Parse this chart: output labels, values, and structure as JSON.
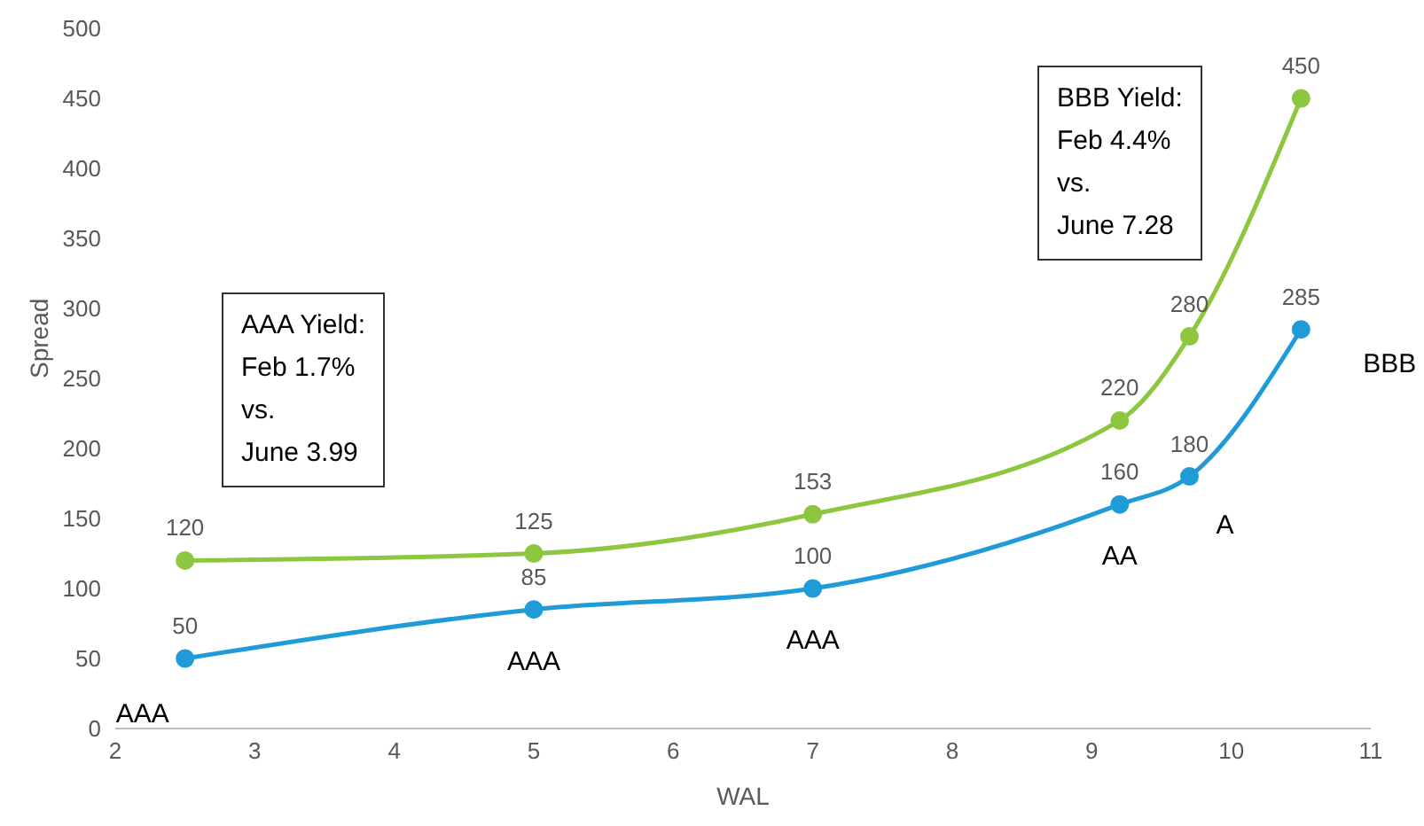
{
  "chart_data": {
    "type": "line",
    "xlabel": "WAL",
    "ylabel": "Spread",
    "xlim": [
      2,
      11
    ],
    "xticks": [
      2,
      3,
      4,
      5,
      6,
      7,
      8,
      9,
      10,
      11
    ],
    "ylim": [
      0,
      500
    ],
    "yticks": [
      0,
      50,
      100,
      150,
      200,
      250,
      300,
      350,
      400,
      450,
      500
    ],
    "grid": false,
    "legend": false,
    "marker": "circle",
    "data_labels": true,
    "series": [
      {
        "color": "#8dc63f",
        "x": [
          2.5,
          5,
          7,
          9.2,
          9.7,
          10.5
        ],
        "values": [
          120,
          125,
          153,
          220,
          280,
          450
        ]
      },
      {
        "color": "#1f9bd7",
        "x": [
          2.5,
          5,
          7,
          9.2,
          9.7,
          10.5
        ],
        "values": [
          50,
          85,
          100,
          160,
          180,
          285
        ]
      }
    ],
    "annotations": [
      {
        "text": "AAA",
        "x": 2.5,
        "y": 50
      },
      {
        "text": "AAA",
        "x": 5,
        "y": 85
      },
      {
        "text": "AAA",
        "x": 7,
        "y": 100
      },
      {
        "text": "AA",
        "x": 9.2,
        "y": 160
      },
      {
        "text": "A",
        "x": 9.7,
        "y": 180
      },
      {
        "text": "BBB",
        "x": 10.5,
        "y": 285
      },
      "AAA Yield:\nFeb 1.7%\nvs.\nJune 3.99",
      "BBB Yield:\nFeb 4.4%\nvs.\nJune 7.28"
    ]
  }
}
